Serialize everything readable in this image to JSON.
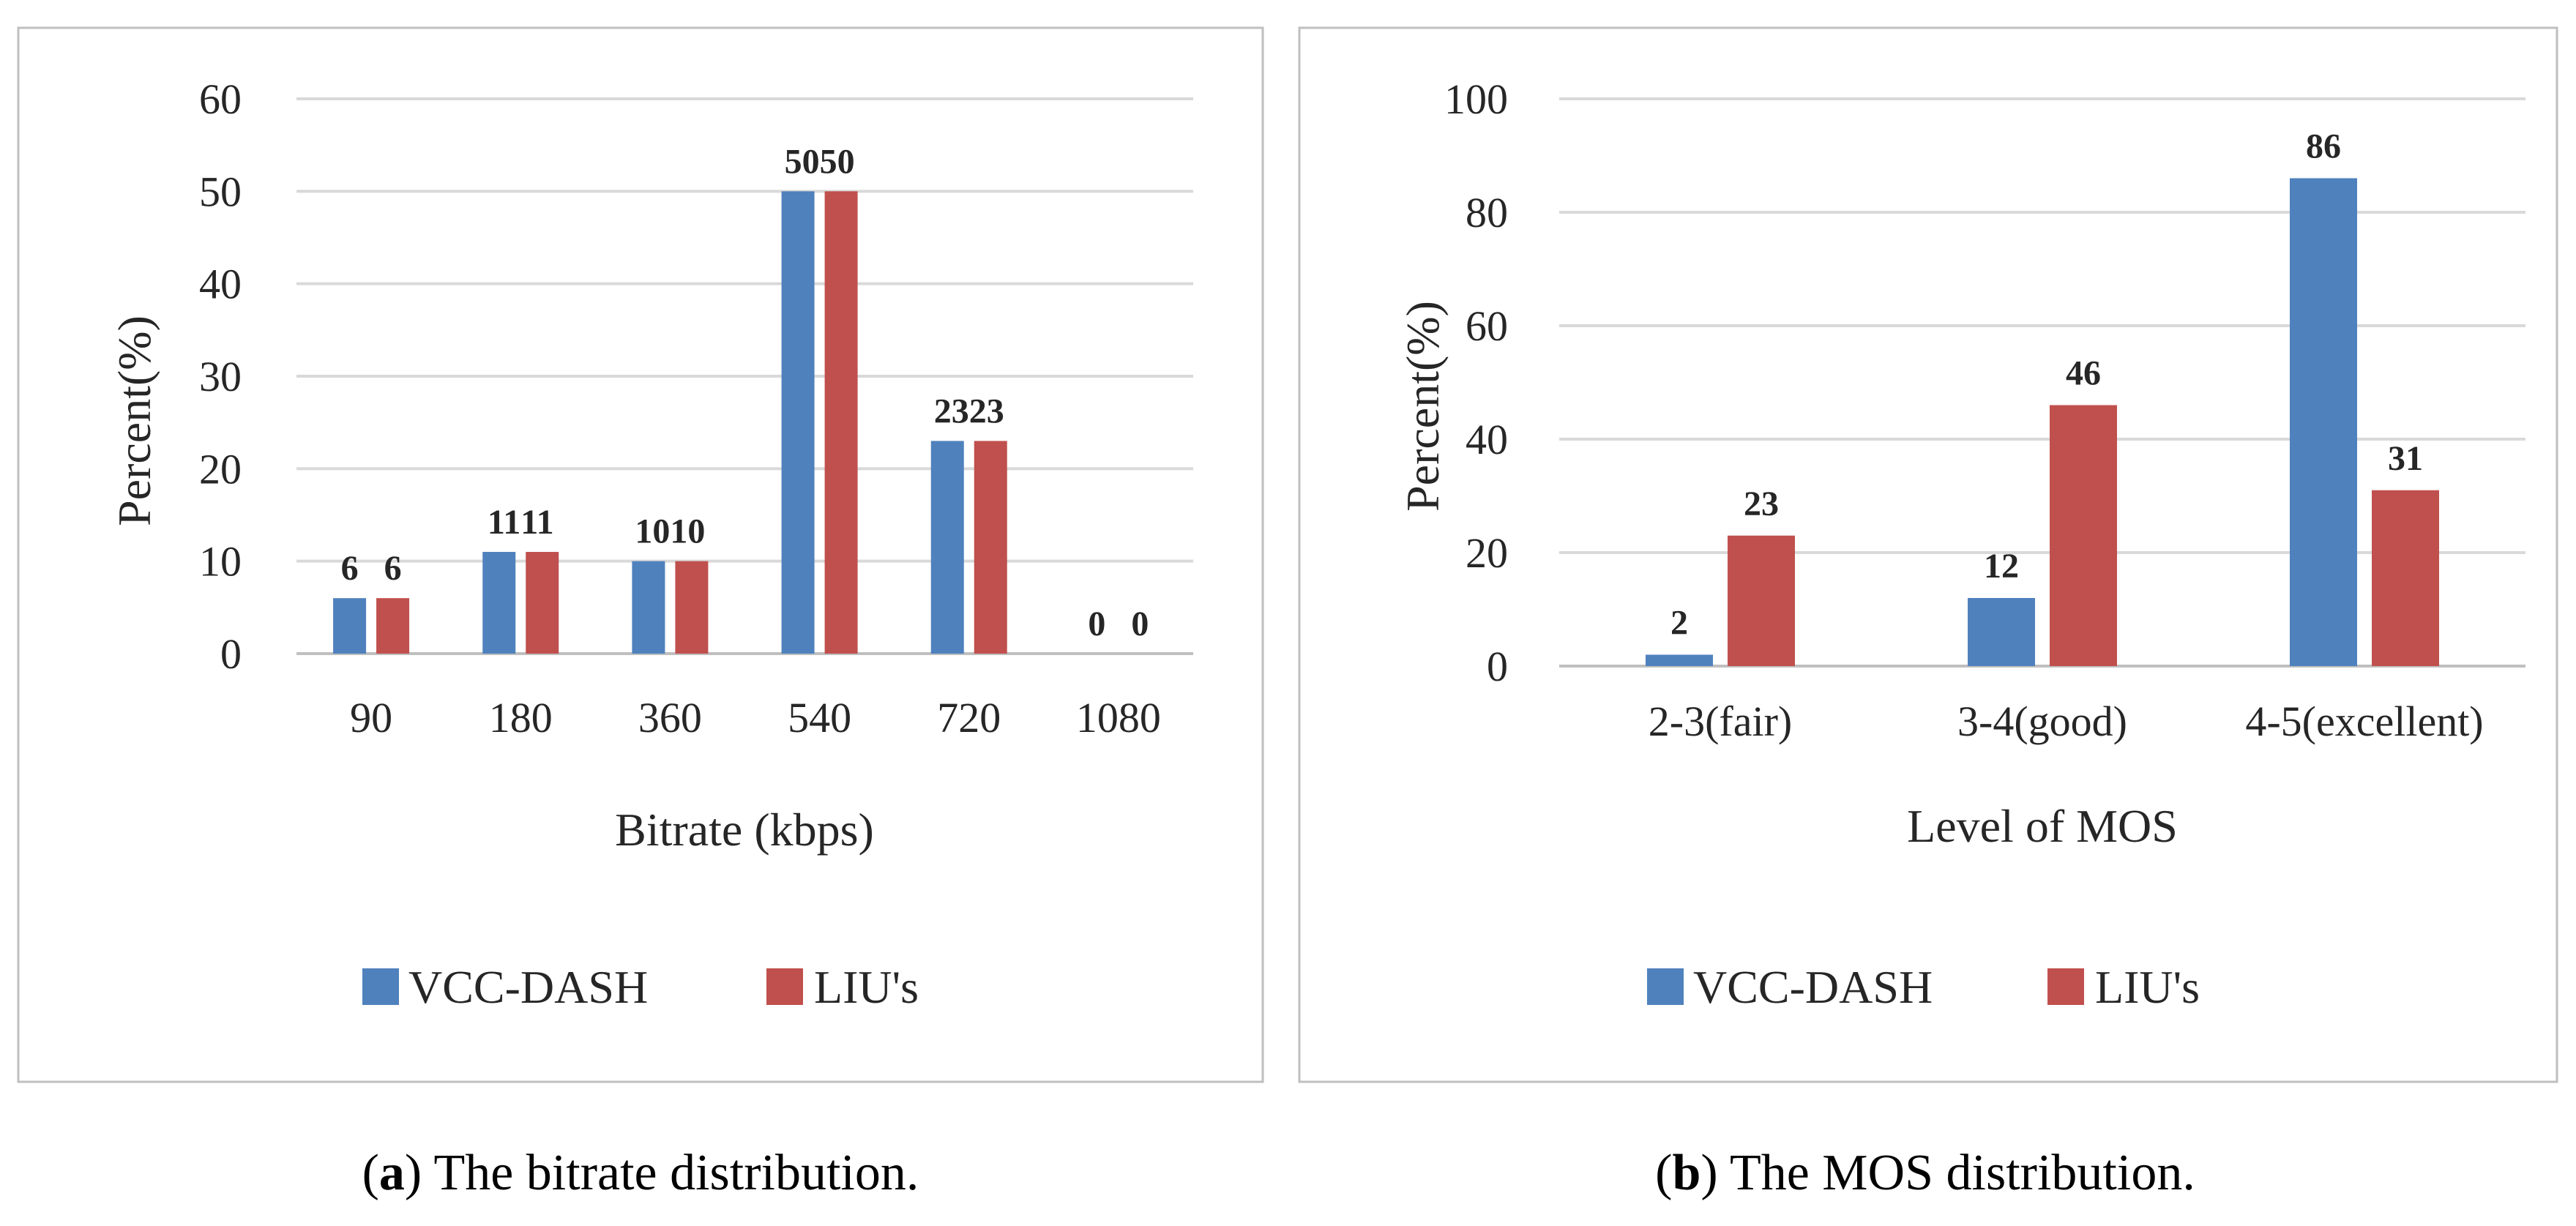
{
  "colors": {
    "series1": "#4f81bd",
    "series2": "#c0504d",
    "grid": "#d9d9d9",
    "frame": "#bfbfbf"
  },
  "chart_data": [
    {
      "type": "bar",
      "xlabel": "Bitrate (kbps)",
      "ylabel": "Percent(%)",
      "ylim": [
        0,
        60
      ],
      "yticks": [
        "0",
        "10",
        "20",
        "30",
        "40",
        "50",
        "60"
      ],
      "ytick_values": [
        0,
        10,
        20,
        30,
        40,
        50,
        60
      ],
      "categories": [
        "90",
        "180",
        "360",
        "540",
        "720",
        "1080"
      ],
      "series": [
        {
          "name": "VCC-DASH",
          "values": [
            6,
            11,
            10,
            50,
            23,
            0
          ],
          "labels": [
            "6",
            "11",
            "10",
            "50",
            "23",
            "0"
          ]
        },
        {
          "name": "LIU's",
          "values": [
            6,
            11,
            10,
            50,
            23,
            0
          ],
          "labels": [
            "6",
            "11",
            "10",
            "50",
            "23",
            "0"
          ]
        }
      ],
      "legend": [
        "VCC-DASH",
        "LIU's"
      ],
      "legend_position": "bottom",
      "grid": true
    },
    {
      "type": "bar",
      "xlabel": "Level of MOS",
      "ylabel": "Percent(%)",
      "ylim": [
        0,
        100
      ],
      "yticks": [
        "0",
        "20",
        "40",
        "60",
        "80",
        "100"
      ],
      "ytick_values": [
        0,
        20,
        40,
        60,
        80,
        100
      ],
      "categories": [
        "2-3(fair)",
        "3-4(good)",
        "4-5(excellent)"
      ],
      "series": [
        {
          "name": "VCC-DASH",
          "values": [
            2,
            12,
            86
          ],
          "labels": [
            "2",
            "12",
            "86"
          ]
        },
        {
          "name": "LIU's",
          "values": [
            23,
            46,
            31
          ],
          "labels": [
            "23",
            "46",
            "31"
          ]
        }
      ],
      "legend": [
        "VCC-DASH",
        "LIU's"
      ],
      "legend_position": "bottom",
      "grid": true
    }
  ],
  "captions": [
    {
      "letter": "a",
      "open": "(",
      "close": ")",
      "text": " The bitrate distribution."
    },
    {
      "letter": "b",
      "open": "(",
      "close": ")",
      "text": " The MOS distribution."
    }
  ]
}
